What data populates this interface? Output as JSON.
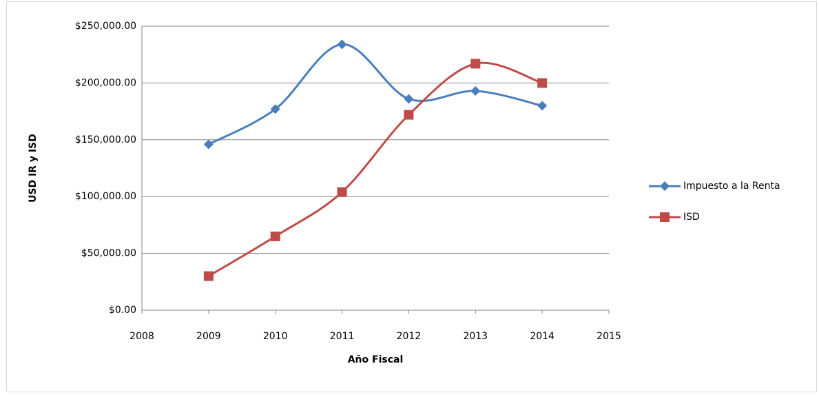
{
  "chart_data": {
    "type": "line",
    "x_label": "Año Fiscal",
    "y_label": "USD IR y ISD",
    "x": [
      2009,
      2010,
      2011,
      2012,
      2013,
      2014
    ],
    "series": [
      {
        "name": "Impuesto a la Renta",
        "color": "#4a7ebb",
        "marker": "diamond",
        "values": [
          146000,
          177000,
          234000,
          186000,
          193000,
          180000
        ]
      },
      {
        "name": "ISD",
        "color": "#be4b48",
        "marker": "square",
        "values": [
          30000,
          65000,
          104000,
          172000,
          217000,
          200000
        ]
      }
    ],
    "xlim": [
      2008,
      2015
    ],
    "xticks": [
      2008,
      2009,
      2010,
      2011,
      2012,
      2013,
      2014,
      2015
    ],
    "ylim": [
      0,
      250000
    ],
    "yticks": [
      {
        "value": 0,
        "label": "$0.00"
      },
      {
        "value": 50000,
        "label": "$50,000.00"
      },
      {
        "value": 100000,
        "label": "$100,000.00"
      },
      {
        "value": 150000,
        "label": "$150,000.00"
      },
      {
        "value": 200000,
        "label": "$200,000.00"
      },
      {
        "value": 250000,
        "label": "$250,000.00"
      }
    ],
    "grid": true,
    "smooth": true,
    "legend": "right"
  }
}
